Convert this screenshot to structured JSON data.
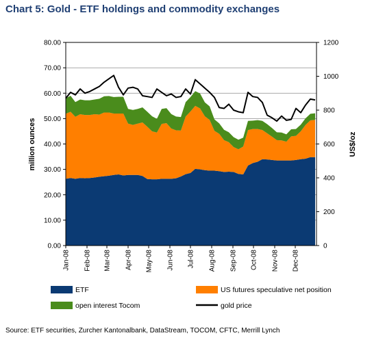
{
  "title": "Chart 5: Gold - ETF holdings and commodity exchanges",
  "source": "Source: ETF securities, Zurcher Kantonalbank, DataStream, TOCOM, CFTC, Merrill Lynch",
  "chart_data": {
    "type": "area",
    "title": "Chart 5: Gold - ETF holdings and commodity exchanges",
    "xlabel": "",
    "ylabel": "million ounces",
    "y2label": "US$/oz",
    "ylim": [
      0,
      80
    ],
    "y2lim": [
      0,
      1200
    ],
    "yticks": [
      "0.00",
      "10.00",
      "20.00",
      "30.00",
      "40.00",
      "50.00",
      "60.00",
      "70.00",
      "80.00"
    ],
    "y2ticks": [
      "0",
      "200",
      "400",
      "600",
      "800",
      "1000",
      "1200"
    ],
    "x_start": "2008-01-01",
    "x_end": "2009-01-01",
    "xticks": [
      {
        "label": "Jan-08",
        "x": "2008-01-01"
      },
      {
        "label": "Feb-08",
        "x": "2008-02-01"
      },
      {
        "label": "Mar-08",
        "x": "2008-03-01"
      },
      {
        "label": "Apr-08",
        "x": "2008-04-01"
      },
      {
        "label": "May-08",
        "x": "2008-05-01"
      },
      {
        "label": "Jun-08",
        "x": "2008-06-01"
      },
      {
        "label": "Jul-08",
        "x": "2008-07-01"
      },
      {
        "label": "Aug-08",
        "x": "2008-08-01"
      },
      {
        "label": "Sep-08",
        "x": "2008-09-01"
      },
      {
        "label": "Oct-08",
        "x": "2008-10-01"
      },
      {
        "label": "Nov-08",
        "x": "2008-11-01"
      },
      {
        "label": "Dec-08",
        "x": "2008-12-01"
      }
    ],
    "grid": "horizontal",
    "legend_position": "bottom",
    "x": [
      "2008-01-01",
      "2008-01-08",
      "2008-01-15",
      "2008-01-22",
      "2008-01-29",
      "2008-02-05",
      "2008-02-12",
      "2008-02-19",
      "2008-02-26",
      "2008-03-04",
      "2008-03-11",
      "2008-03-18",
      "2008-03-25",
      "2008-04-01",
      "2008-04-08",
      "2008-04-15",
      "2008-04-22",
      "2008-04-29",
      "2008-05-06",
      "2008-05-13",
      "2008-05-20",
      "2008-05-27",
      "2008-06-03",
      "2008-06-10",
      "2008-06-17",
      "2008-06-24",
      "2008-07-01",
      "2008-07-08",
      "2008-07-15",
      "2008-07-22",
      "2008-07-29",
      "2008-08-05",
      "2008-08-12",
      "2008-08-19",
      "2008-08-26",
      "2008-09-02",
      "2008-09-09",
      "2008-09-16",
      "2008-09-23",
      "2008-09-30",
      "2008-10-07",
      "2008-10-14",
      "2008-10-21",
      "2008-10-28",
      "2008-11-04",
      "2008-11-11",
      "2008-11-18",
      "2008-11-25",
      "2008-12-02",
      "2008-12-09",
      "2008-12-16",
      "2008-12-23",
      "2008-12-30"
    ],
    "series": [
      {
        "name": "ETF",
        "axis": "left",
        "kind": "stacked-area",
        "color": "#0b3a73",
        "values": [
          26.3,
          26.6,
          26.3,
          26.6,
          26.5,
          26.6,
          26.8,
          27.1,
          27.3,
          27.5,
          27.8,
          28.0,
          27.6,
          27.8,
          27.8,
          27.8,
          27.4,
          26.2,
          26.1,
          26.1,
          26.3,
          26.3,
          26.3,
          26.5,
          27.2,
          28.1,
          28.6,
          30.2,
          30.0,
          29.7,
          29.5,
          29.5,
          29.3,
          29.0,
          29.1,
          29.0,
          28.2,
          28.0,
          31.5,
          32.5,
          33.0,
          34.0,
          33.9,
          33.7,
          33.5,
          33.5,
          33.5,
          33.5,
          33.7,
          34.0,
          34.2,
          34.8,
          34.8
        ]
      },
      {
        "name": "US futures speculative net position",
        "axis": "left",
        "kind": "stacked-area",
        "color": "#ff7f00",
        "values": [
          25.6,
          26.1,
          24.4,
          25.1,
          24.9,
          24.8,
          24.9,
          24.5,
          25.1,
          24.9,
          24.2,
          24.0,
          24.4,
          20.2,
          19.7,
          20.2,
          21.1,
          20.6,
          18.9,
          18.4,
          21.6,
          21.9,
          19.8,
          18.9,
          18.1,
          22.7,
          24.2,
          24.8,
          24.0,
          21.2,
          20.0,
          15.7,
          14.7,
          12.5,
          11.6,
          9.8,
          9.7,
          11.0,
          14.0,
          13.4,
          12.9,
          11.5,
          10.3,
          9.2,
          8.0,
          7.9,
          7.4,
          9.5,
          9.5,
          11.0,
          13.3,
          14.5,
          14.7
        ]
      },
      {
        "name": "open interest Tocom",
        "axis": "left",
        "kind": "stacked-area",
        "color": "#4a8c1c",
        "values": [
          6.1,
          6.3,
          5.8,
          5.8,
          5.8,
          5.8,
          5.8,
          6.2,
          6.4,
          6.5,
          6.5,
          6.6,
          6.6,
          5.8,
          5.9,
          5.8,
          5.9,
          5.9,
          5.9,
          5.4,
          5.9,
          5.9,
          5.7,
          5.4,
          5.3,
          5.7,
          5.7,
          5.8,
          5.9,
          5.5,
          5.3,
          4.5,
          4.1,
          4.1,
          3.9,
          3.9,
          3.8,
          3.5,
          3.6,
          3.3,
          3.5,
          3.6,
          3.6,
          3.4,
          3.1,
          3.1,
          2.9,
          2.8,
          2.7,
          2.6,
          2.6,
          2.6,
          2.6
        ]
      },
      {
        "name": "gold price",
        "axis": "right",
        "kind": "line",
        "color": "#000000",
        "values": [
          870,
          905,
          890,
          925,
          900,
          910,
          925,
          940,
          965,
          985,
          1005,
          935,
          890,
          930,
          935,
          925,
          885,
          880,
          875,
          925,
          905,
          885,
          895,
          875,
          880,
          925,
          895,
          980,
          955,
          930,
          905,
          875,
          815,
          810,
          835,
          800,
          790,
          785,
          905,
          880,
          875,
          845,
          770,
          755,
          735,
          765,
          740,
          745,
          810,
          785,
          830,
          865,
          860
        ]
      }
    ]
  }
}
